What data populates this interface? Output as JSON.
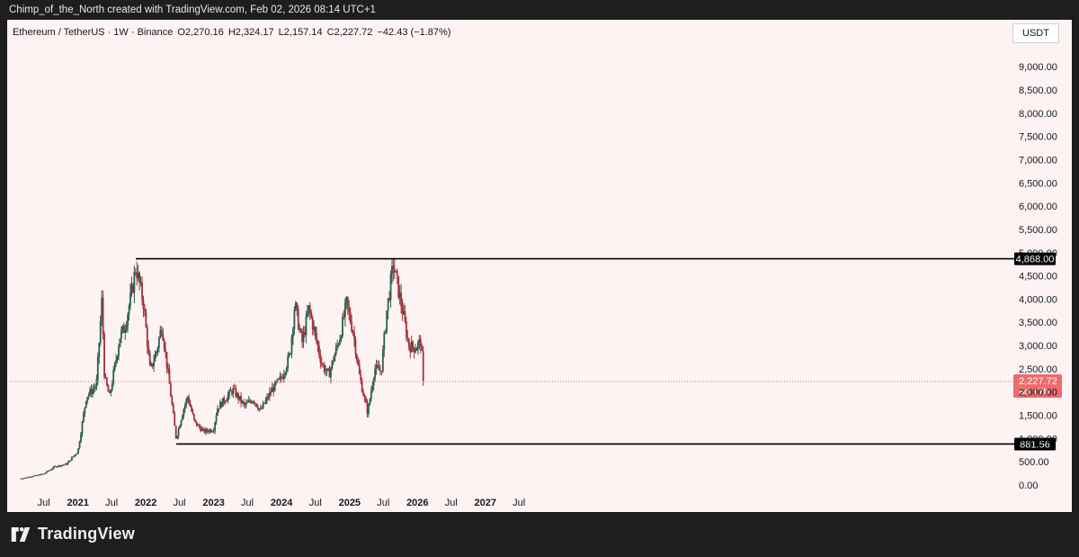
{
  "header": {
    "credit": "Chimp_of_the_North created with TradingView.com, Feb 02, 2026 08:14 UTC+1"
  },
  "legend": {
    "symbol": "Ethereum / TetherUS · 1W · Binance",
    "open": "O2,270.16",
    "high": "H2,324.17",
    "low": "L2,157.14",
    "close": "C2,227.72",
    "change": "−42.43 (−1.87%)"
  },
  "currency_button": "USDT",
  "brand": {
    "name": "TradingView",
    "icon": "tradingview-logo-icon"
  },
  "colors": {
    "up": "#2b5f4d",
    "down": "#a0323c",
    "price_tag": "#f06b6b",
    "level_line": "#000000",
    "background": "#fdf3f2"
  },
  "chart_data": {
    "type": "candlestick",
    "title": "Ethereum / TetherUS · 1W · Binance",
    "xlim": [
      "2020-03",
      "2027-09"
    ],
    "ylim": [
      0,
      9500
    ],
    "y_ticks": [
      "0.00",
      "500.00",
      "1,000.00",
      "1,500.00",
      "2,000.00",
      "2,500.00",
      "3,000.00",
      "3,500.00",
      "4,000.00",
      "4,500.00",
      "5,000.00",
      "5,500.00",
      "6,000.00",
      "6,500.00",
      "7,000.00",
      "7,500.00",
      "8,000.00",
      "8,500.00",
      "9,000.00"
    ],
    "x_ticks": [
      {
        "label": "Jul",
        "date": "2020-07-01",
        "bold": false
      },
      {
        "label": "2021",
        "date": "2021-01-01",
        "bold": true
      },
      {
        "label": "Jul",
        "date": "2021-07-01",
        "bold": false
      },
      {
        "label": "2022",
        "date": "2022-01-01",
        "bold": true
      },
      {
        "label": "Jul",
        "date": "2022-07-01",
        "bold": false
      },
      {
        "label": "2023",
        "date": "2023-01-01",
        "bold": true
      },
      {
        "label": "Jul",
        "date": "2023-07-01",
        "bold": false
      },
      {
        "label": "2024",
        "date": "2024-01-01",
        "bold": true
      },
      {
        "label": "Jul",
        "date": "2024-07-01",
        "bold": false
      },
      {
        "label": "2025",
        "date": "2025-01-01",
        "bold": true
      },
      {
        "label": "Jul",
        "date": "2025-07-01",
        "bold": false
      },
      {
        "label": "2026",
        "date": "2026-01-01",
        "bold": true
      },
      {
        "label": "Jul",
        "date": "2026-07-01",
        "bold": false
      },
      {
        "label": "2027",
        "date": "2027-01-01",
        "bold": true
      },
      {
        "label": "Jul",
        "date": "2027-07-01",
        "bold": false
      }
    ],
    "grid": false,
    "levels": [
      {
        "label": "4,868.00",
        "value": 4868,
        "from": "2021-11-08"
      },
      {
        "label": "881.56",
        "value": 881.56,
        "from": "2022-06-13"
      }
    ],
    "last_price": {
      "label": "2,227.72",
      "countdown": "6d 17h",
      "value": 2227.72
    },
    "price_anchors": [
      [
        "2020-03-01",
        140
      ],
      [
        "2020-07-01",
        240
      ],
      [
        "2020-09-01",
        400
      ],
      [
        "2020-11-01",
        450
      ],
      [
        "2021-01-01",
        730
      ],
      [
        "2021-02-15",
        1900
      ],
      [
        "2021-04-10",
        2150
      ],
      [
        "2021-05-10",
        4000
      ],
      [
        "2021-05-24",
        2300
      ],
      [
        "2021-06-20",
        1900
      ],
      [
        "2021-08-15",
        3200
      ],
      [
        "2021-09-10",
        3400
      ],
      [
        "2021-10-20",
        4200
      ],
      [
        "2021-11-08",
        4700
      ],
      [
        "2021-12-20",
        3900
      ],
      [
        "2022-01-24",
        2450
      ],
      [
        "2022-03-01",
        2900
      ],
      [
        "2022-03-28",
        3450
      ],
      [
        "2022-05-10",
        2100
      ],
      [
        "2022-06-13",
        1000
      ],
      [
        "2022-07-20",
        1600
      ],
      [
        "2022-08-14",
        1900
      ],
      [
        "2022-09-20",
        1350
      ],
      [
        "2022-11-08",
        1150
      ],
      [
        "2022-12-31",
        1200
      ],
      [
        "2023-01-20",
        1650
      ],
      [
        "2023-04-14",
        2050
      ],
      [
        "2023-06-15",
        1700
      ],
      [
        "2023-08-01",
        1850
      ],
      [
        "2023-09-10",
        1600
      ],
      [
        "2023-11-10",
        2050
      ],
      [
        "2023-12-31",
        2300
      ],
      [
        "2024-02-15",
        2800
      ],
      [
        "2024-03-12",
        3900
      ],
      [
        "2024-04-20",
        3050
      ],
      [
        "2024-05-27",
        3800
      ],
      [
        "2024-08-05",
        2600
      ],
      [
        "2024-09-10",
        2350
      ],
      [
        "2024-11-10",
        3200
      ],
      [
        "2024-12-15",
        3900
      ],
      [
        "2025-01-20",
        3300
      ],
      [
        "2025-02-25",
        2300
      ],
      [
        "2025-04-08",
        1550
      ],
      [
        "2025-05-15",
        2500
      ],
      [
        "2025-06-20",
        2450
      ],
      [
        "2025-07-20",
        3750
      ],
      [
        "2025-08-24",
        4750
      ],
      [
        "2025-09-25",
        4100
      ],
      [
        "2025-10-10",
        3800
      ],
      [
        "2025-11-15",
        3000
      ],
      [
        "2025-12-20",
        2950
      ],
      [
        "2026-01-20",
        3100
      ],
      [
        "2026-02-02",
        2227.72
      ]
    ]
  }
}
